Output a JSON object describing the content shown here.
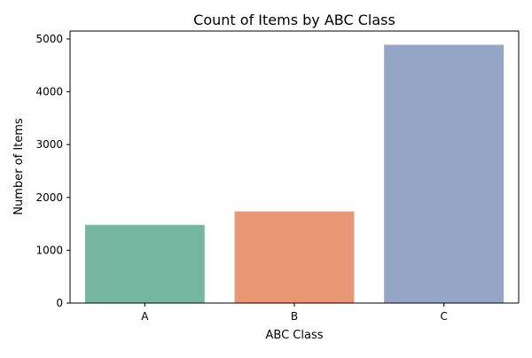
{
  "chart_data": {
    "type": "bar",
    "title": "Count of Items by ABC Class",
    "xlabel": "ABC Class",
    "ylabel": "Number of Items",
    "categories": [
      "A",
      "B",
      "C"
    ],
    "values": [
      1480,
      1735,
      4890
    ],
    "colors": [
      "#76b7a1",
      "#e99875",
      "#94a5c6"
    ],
    "ylim": [
      0,
      5150
    ],
    "yticks": [
      0,
      1000,
      2000,
      3000,
      4000,
      5000
    ],
    "grid": false,
    "legend": "none"
  }
}
